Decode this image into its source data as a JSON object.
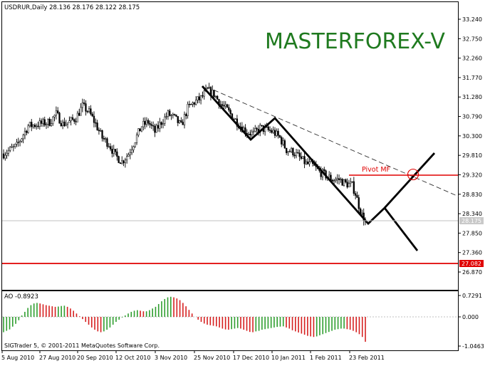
{
  "colors": {
    "background": "#FFFFFF",
    "axis": "#000000",
    "bull": "#2E9E2E",
    "bear": "#D62020",
    "level_line": "#E00000",
    "price_tag_bg": "#C9C9C9",
    "brand": "#1F7A1F",
    "pivot_label": "#E00000"
  },
  "main_chart": {
    "header": "USDRUR,Daily  28.136 28.176 28.122 28.175",
    "brand": "MASTERFOREX-V",
    "pivot_label": "Pivot MF",
    "price_tag_current": "28.175",
    "price_tag_support": "27.082",
    "y_ticks": [
      "33.240",
      "32.750",
      "32.260",
      "31.770",
      "31.280",
      "30.790",
      "30.300",
      "29.810",
      "29.320",
      "28.830",
      "28.340",
      "27.850",
      "27.360",
      "26.870"
    ],
    "y_tick_values": [
      33.24,
      32.75,
      32.26,
      31.77,
      31.28,
      30.79,
      30.3,
      29.81,
      29.32,
      28.83,
      28.34,
      27.85,
      27.36,
      26.87
    ]
  },
  "indicator": {
    "label": "AO -0.8923",
    "y_ticks": [
      "0.7291",
      "0.000",
      "-1.0463"
    ],
    "footer": "SIGTrader 5, © 2001-2011 MetaQuotes Software Corp."
  },
  "x_axis": {
    "labels": [
      "5 Aug 2010",
      "27 Aug 2010",
      "20 Sep 2010",
      "12 Oct 2010",
      "3 Nov 2010",
      "25 Nov 2010",
      "17 Dec 2010",
      "10 Jan 2011",
      "1 Feb 2011",
      "23 Feb 2011"
    ]
  },
  "chart_data": {
    "type": "candlestick",
    "symbol": "USDRUR",
    "timeframe": "Daily",
    "last_bar": {
      "open": 28.136,
      "high": 28.176,
      "low": 28.122,
      "close": 28.175
    },
    "ylim": [
      26.75,
      33.55
    ],
    "levels": [
      {
        "name": "Pivot MF",
        "value": 29.32
      },
      {
        "name": "Current price",
        "value": 28.175
      },
      {
        "name": "Support",
        "value": 27.082
      }
    ],
    "price_path": [
      [
        0,
        29.85
      ],
      [
        8,
        30.05
      ],
      [
        15,
        30.55
      ],
      [
        22,
        30.6
      ],
      [
        28,
        30.65
      ],
      [
        32,
        30.85
      ],
      [
        36,
        30.6
      ],
      [
        40,
        30.65
      ],
      [
        44,
        30.75
      ],
      [
        48,
        31.05
      ],
      [
        52,
        30.9
      ],
      [
        56,
        30.6
      ],
      [
        60,
        30.25
      ],
      [
        64,
        30.1
      ],
      [
        68,
        29.8
      ],
      [
        72,
        29.65
      ],
      [
        76,
        29.85
      ],
      [
        80,
        30.2
      ],
      [
        84,
        30.55
      ],
      [
        88,
        30.65
      ],
      [
        92,
        30.4
      ],
      [
        96,
        30.65
      ],
      [
        100,
        30.85
      ],
      [
        104,
        30.75
      ],
      [
        108,
        30.55
      ],
      [
        112,
        31.0
      ],
      [
        116,
        31.15
      ],
      [
        120,
        31.25
      ],
      [
        124,
        31.45
      ],
      [
        128,
        31.35
      ],
      [
        132,
        31.1
      ],
      [
        136,
        30.95
      ],
      [
        140,
        30.75
      ],
      [
        144,
        30.55
      ],
      [
        148,
        30.4
      ],
      [
        152,
        30.35
      ],
      [
        156,
        30.5
      ],
      [
        160,
        30.45
      ],
      [
        164,
        30.4
      ],
      [
        168,
        30.25
      ],
      [
        172,
        29.95
      ],
      [
        176,
        29.9
      ],
      [
        180,
        29.75
      ],
      [
        184,
        29.6
      ],
      [
        188,
        29.55
      ],
      [
        192,
        29.4
      ],
      [
        196,
        29.3
      ],
      [
        200,
        29.2
      ],
      [
        204,
        29.2
      ],
      [
        208,
        29.1
      ],
      [
        212,
        29.05
      ],
      [
        214,
        28.85
      ],
      [
        216,
        28.55
      ],
      [
        218,
        28.3
      ],
      [
        220,
        28.175
      ]
    ],
    "ao_histogram": [
      -0.55,
      -0.5,
      -0.45,
      -0.35,
      -0.25,
      -0.12,
      0.05,
      0.18,
      0.32,
      0.42,
      0.48,
      0.5,
      0.48,
      0.45,
      0.42,
      0.4,
      0.38,
      0.36,
      0.37,
      0.39,
      0.4,
      0.36,
      0.3,
      0.22,
      0.12,
      0.02,
      -0.08,
      -0.18,
      -0.28,
      -0.38,
      -0.46,
      -0.52,
      -0.55,
      -0.52,
      -0.46,
      -0.38,
      -0.28,
      -0.18,
      -0.1,
      -0.02,
      0.05,
      0.12,
      0.18,
      0.22,
      0.24,
      0.22,
      0.2,
      0.2,
      0.24,
      0.3,
      0.36,
      0.46,
      0.56,
      0.64,
      0.7,
      0.72,
      0.7,
      0.66,
      0.6,
      0.5,
      0.38,
      0.25,
      0.12,
      0.0,
      -0.1,
      -0.18,
      -0.24,
      -0.28,
      -0.3,
      -0.32,
      -0.34,
      -0.38,
      -0.42,
      -0.45,
      -0.46,
      -0.44,
      -0.42,
      -0.4,
      -0.42,
      -0.46,
      -0.5,
      -0.54,
      -0.55,
      -0.52,
      -0.5,
      -0.46,
      -0.44,
      -0.42,
      -0.4,
      -0.38,
      -0.36,
      -0.35,
      -0.34,
      -0.38,
      -0.42,
      -0.48,
      -0.52,
      -0.56,
      -0.6,
      -0.64,
      -0.68,
      -0.7,
      -0.72,
      -0.7,
      -0.66,
      -0.62,
      -0.58,
      -0.54,
      -0.5,
      -0.46,
      -0.44,
      -0.42,
      -0.42,
      -0.44,
      -0.46,
      -0.5,
      -0.55,
      -0.62,
      -0.72,
      -0.8923
    ]
  }
}
